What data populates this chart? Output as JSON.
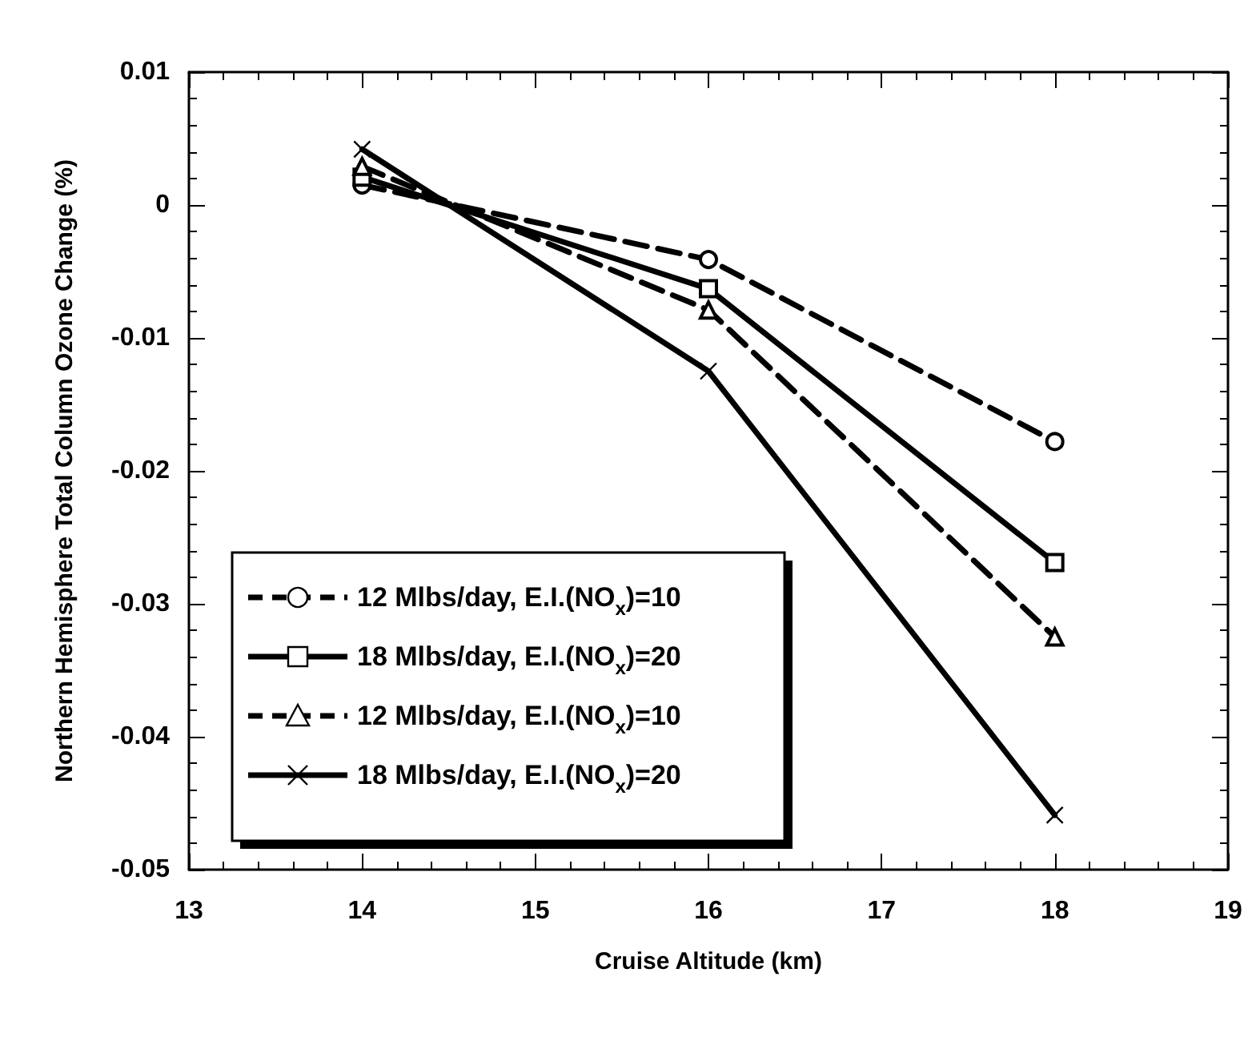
{
  "chart_data": {
    "type": "line",
    "xlabel": "Cruise Altitude (km)",
    "ylabel": "Northern Hemisphere Total Column Ozone Change (%)",
    "x": [
      14,
      16,
      18
    ],
    "series": [
      {
        "name": "12 Mlbs/day, E.I.(NO$_{x}$)=10",
        "color": "#000000",
        "marker": "circle",
        "line_style": "dashed",
        "values": [
          0.0015,
          -0.0041,
          -0.0178
        ]
      },
      {
        "name": "18 Mlbs/day, E.I.(NO$_{x}$)=20",
        "color": "#000000",
        "marker": "square",
        "line_style": "solid",
        "values": [
          0.0021,
          -0.0063,
          -0.0269
        ]
      },
      {
        "name": "12 Mlbs/day, E.I.(NO$_{x}$)=10",
        "color": "#000000",
        "marker": "triangle",
        "line_style": "dashed",
        "values": [
          0.0029,
          -0.0079,
          -0.0325
        ]
      },
      {
        "name": "18 Mlbs/day, E.I.(NO$_{x}$)=20",
        "color": "#000000",
        "marker": "cross",
        "line_style": "solid",
        "values": [
          0.0042,
          -0.0125,
          -0.0459
        ]
      }
    ],
    "xlim": [
      13,
      19
    ],
    "xticks": [
      13,
      14,
      15,
      16,
      17,
      18,
      19
    ],
    "ylim": [
      -0.05,
      0.01
    ],
    "yticks": [
      -0.05,
      -0.04,
      -0.03,
      -0.02,
      -0.01,
      0,
      0.01
    ],
    "grid": false,
    "legend": "bottom left"
  }
}
